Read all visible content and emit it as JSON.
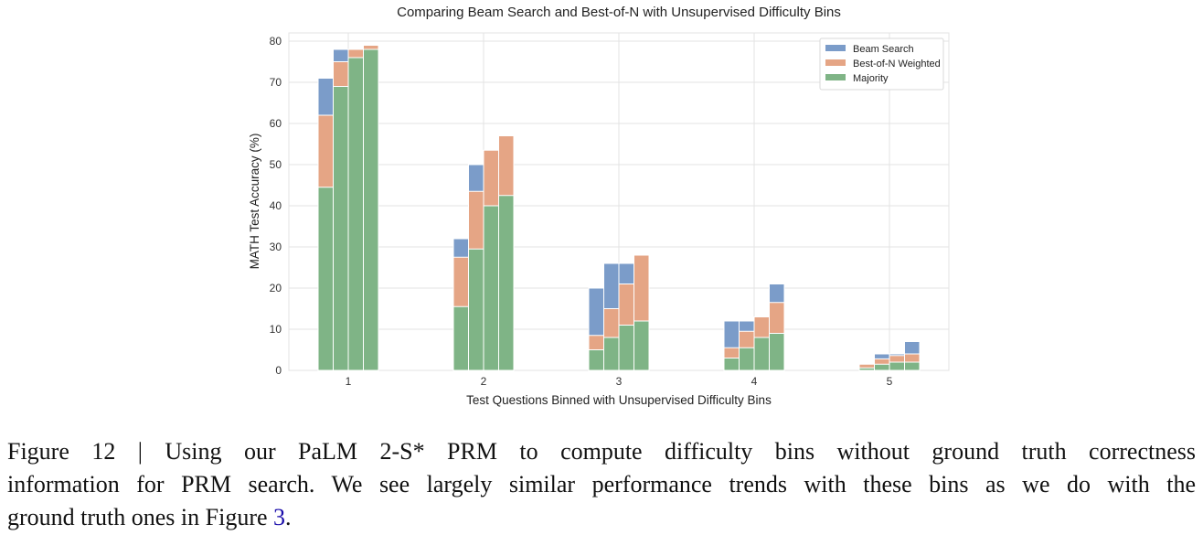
{
  "chart_data": {
    "type": "bar",
    "title": "Comparing Beam Search and Best-of-N with Unsupervised Difficulty Bins",
    "xlabel": "Test Questions Binned with Unsupervised Difficulty Bins",
    "ylabel": "MATH Test Accuracy (%)",
    "categories": [
      "1",
      "2",
      "3",
      "4",
      "5"
    ],
    "yticks": [
      0,
      10,
      20,
      30,
      40,
      50,
      60,
      70,
      80
    ],
    "ylim": [
      0,
      82
    ],
    "grid": true,
    "legend_position": "top-right",
    "bars_per_category": 4,
    "series": [
      {
        "name": "Beam Search",
        "color": "#7b9cc9",
        "values": [
          [
            71,
            78,
            76,
            78
          ],
          [
            32,
            50,
            50,
            54
          ],
          [
            20,
            26,
            26,
            26
          ],
          [
            12,
            12,
            12,
            21
          ],
          [
            1.5,
            4,
            4,
            7
          ]
        ]
      },
      {
        "name": "Best-of-N Weighted",
        "color": "#e5a585",
        "values": [
          [
            62,
            75,
            78,
            79
          ],
          [
            27.5,
            43.5,
            53.5,
            57
          ],
          [
            8.5,
            15,
            21,
            28
          ],
          [
            5.5,
            9.5,
            13,
            16.5
          ],
          [
            1.5,
            2.8,
            3.6,
            4
          ]
        ]
      },
      {
        "name": "Majority",
        "color": "#7fb486",
        "values": [
          [
            44.5,
            69,
            76,
            78
          ],
          [
            15.5,
            29.5,
            40,
            42.5
          ],
          [
            5,
            8,
            11,
            12
          ],
          [
            3,
            5.5,
            8,
            9
          ],
          [
            0.6,
            1.5,
            2,
            2
          ]
        ]
      }
    ]
  },
  "caption": {
    "line1": "Figure 12 | Using our PaLM 2-S* PRM to compute difficulty bins without ground truth correctness",
    "line2": "information for PRM search. We see largely similar performance trends with these bins as we do with the",
    "line3_before": "ground truth ones in Figure ",
    "line3_link": "3",
    "line3_after": "."
  }
}
